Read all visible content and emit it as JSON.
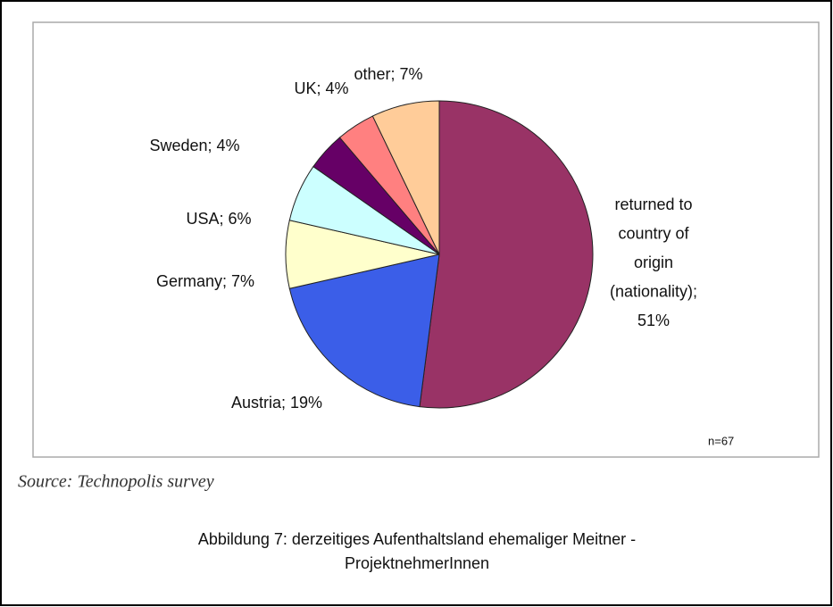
{
  "chart_data": {
    "type": "pie",
    "values": [
      51,
      19,
      7,
      6,
      4,
      4,
      7
    ],
    "value_labels": [
      "returned to\ncountry of\norigin\n(nationality);\n51%",
      "Austria; 19%",
      "Germany; 7%",
      "USA; 6%",
      "Sweden; 4%",
      "UK; 4%",
      "other; 7%"
    ],
    "colors": [
      "#993366",
      "#3b5ee8",
      "#ffffcc",
      "#ccffff",
      "#660066",
      "#ff8080",
      "#ffcc99"
    ],
    "annotation": "n=67"
  },
  "source": "Source: Technopolis survey",
  "caption": [
    "Abbildung 7: derzeitiges Aufenthaltsland ehemaliger Meitner -",
    "ProjektnehmerInnen"
  ]
}
